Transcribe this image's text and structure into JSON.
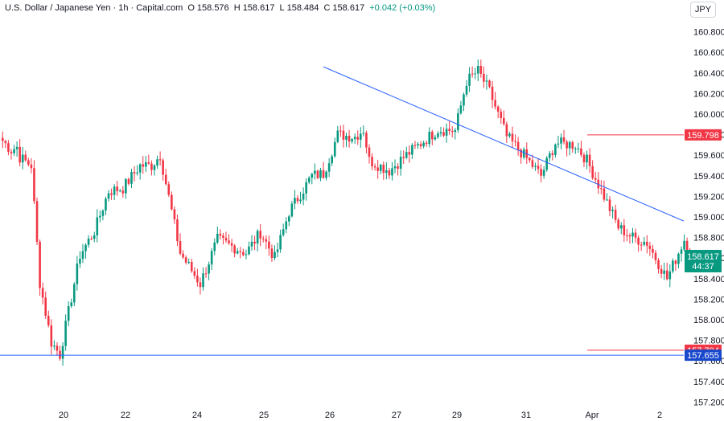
{
  "header": {
    "symbol": "U.S. Dollar / Japanese Yen",
    "interval": "1h",
    "source": "Capital.com",
    "open_label": "O",
    "open": "158.576",
    "high_label": "H",
    "high": "158.617",
    "low_label": "L",
    "low": "158.484",
    "close_label": "C",
    "close": "158.617",
    "change": "+0.042 (+0.03%)",
    "currency": "JPY"
  },
  "colors": {
    "up": "#089981",
    "down": "#f23645",
    "trend": "#2962ff",
    "support": "#2962ff",
    "resistance": "#f23645"
  },
  "chart_data": {
    "type": "candlestick",
    "ylim": [
      157.2,
      160.95
    ],
    "y_ticks": [
      "160.800",
      "160.600",
      "160.400",
      "160.200",
      "160.000",
      "159.800",
      "159.600",
      "159.400",
      "159.200",
      "159.000",
      "158.800",
      "158.600",
      "158.400",
      "158.200",
      "158.000",
      "157.800",
      "157.600",
      "157.400",
      "157.200"
    ],
    "x_ticks": [
      "20",
      "22",
      "24",
      "25",
      "26",
      "27",
      "29",
      "31",
      "Apr",
      "2"
    ],
    "last_price": {
      "value": "158.617",
      "countdown": "44:37"
    },
    "resistance_level": {
      "value": 159.798,
      "label": "159.798"
    },
    "resistance_level_2": {
      "value": 157.704,
      "label": "157.704"
    },
    "support_level": {
      "value": 157.655,
      "label": "157.655"
    },
    "trendline": {
      "start_bar": 112,
      "start_price": 160.46,
      "end_bar": 178,
      "end_price": 158.96
    },
    "path": [
      [
        0,
        159.74
      ],
      [
        3,
        159.65
      ],
      [
        5,
        159.68
      ],
      [
        6,
        159.58
      ],
      [
        10,
        159.5
      ],
      [
        13,
        158.36
      ],
      [
        17,
        157.78
      ],
      [
        20,
        157.66
      ],
      [
        27,
        158.63
      ],
      [
        32,
        158.86
      ],
      [
        37,
        159.25
      ],
      [
        42,
        159.28
      ],
      [
        48,
        159.5
      ],
      [
        52,
        159.5
      ],
      [
        55,
        159.6
      ],
      [
        62,
        158.65
      ],
      [
        69,
        158.35
      ],
      [
        75,
        158.78
      ],
      [
        85,
        158.65
      ],
      [
        90,
        158.85
      ],
      [
        95,
        158.6
      ],
      [
        100,
        159.05
      ],
      [
        108,
        159.4
      ],
      [
        112,
        159.42
      ],
      [
        117,
        159.8
      ],
      [
        123,
        159.78
      ],
      [
        126,
        159.85
      ],
      [
        128,
        159.55
      ],
      [
        135,
        159.45
      ],
      [
        140,
        159.58
      ],
      [
        152,
        159.85
      ],
      [
        158,
        159.84
      ],
      [
        162,
        160.32
      ],
      [
        166,
        160.42
      ],
      [
        170,
        160.22
      ],
      [
        176,
        159.78
      ],
      [
        182,
        159.6
      ],
      [
        188,
        159.4
      ],
      [
        193,
        159.72
      ],
      [
        200,
        159.7
      ],
      [
        204,
        159.55
      ],
      [
        210,
        159.2
      ],
      [
        215,
        158.9
      ],
      [
        220,
        158.8
      ],
      [
        225,
        158.75
      ],
      [
        232,
        158.4
      ],
      [
        238,
        158.78
      ],
      [
        240,
        158.62
      ]
    ]
  }
}
